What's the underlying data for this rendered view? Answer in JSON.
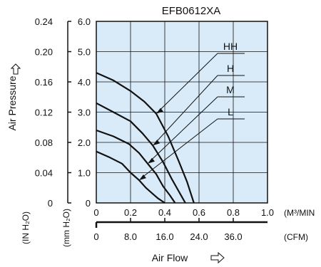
{
  "chart_data": {
    "type": "line",
    "title": "EFB0612XA",
    "xlabel": "Air Flow",
    "ylabel": "Air Pressure",
    "x_unit_primary": "(M³/MIN",
    "x_unit_secondary": "(CFM)",
    "y_unit_inch": "(IN H₂O)",
    "y_unit_mm": "(mm H₂O)",
    "xlim": [
      0,
      1.0
    ],
    "ylim_mm": [
      0,
      6.0
    ],
    "ylim_inch": [
      0,
      0.24
    ],
    "x_ticks": [
      "0",
      "0.2",
      "0.4",
      "0.6",
      "0.8",
      "1.0"
    ],
    "x2_ticks": [
      "0",
      "8.0",
      "16.0",
      "24.0",
      "36.0"
    ],
    "y_ticks_mm": [
      "0",
      "1.0",
      "2.0",
      "3.0",
      "4.0",
      "5.0",
      "6.0"
    ],
    "y_ticks_inch": [
      "0",
      "0.04",
      "0.08",
      "0.12",
      "0.16",
      "0.20",
      "0.24"
    ],
    "grid": true,
    "series": [
      {
        "name": "HH",
        "x": [
          0,
          0.1,
          0.2,
          0.28,
          0.35,
          0.42,
          0.48,
          0.53,
          0.57
        ],
        "y": [
          4.3,
          4.05,
          3.7,
          3.35,
          2.95,
          2.2,
          1.4,
          0.7,
          0
        ]
      },
      {
        "name": "H",
        "x": [
          0,
          0.1,
          0.2,
          0.27,
          0.33,
          0.39,
          0.44,
          0.48,
          0.52
        ],
        "y": [
          3.3,
          3.0,
          2.7,
          2.3,
          1.9,
          1.35,
          0.8,
          0.4,
          0
        ]
      },
      {
        "name": "M",
        "x": [
          0,
          0.1,
          0.19,
          0.25,
          0.3,
          0.35,
          0.39,
          0.43,
          0.46
        ],
        "y": [
          2.4,
          2.2,
          1.95,
          1.65,
          1.3,
          0.95,
          0.55,
          0.25,
          0
        ]
      },
      {
        "name": "L",
        "x": [
          0,
          0.08,
          0.15,
          0.2,
          0.25,
          0.29,
          0.33,
          0.36,
          0.4
        ],
        "y": [
          1.7,
          1.5,
          1.3,
          1.0,
          0.75,
          0.5,
          0.3,
          0.15,
          0
        ]
      }
    ]
  }
}
